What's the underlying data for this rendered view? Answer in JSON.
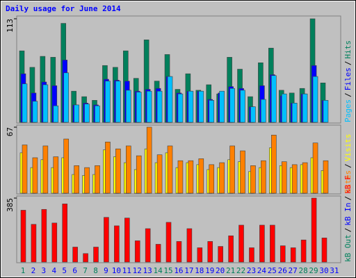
{
  "chart_data": [
    {
      "type": "bar",
      "title": "Daily usage for June 2014",
      "ylim": [
        0,
        113
      ],
      "yticks": [
        113
      ],
      "legend_separator": "/",
      "series": [
        {
          "name": "Hits",
          "color": "#00805c",
          "values": [
            78,
            60,
            72,
            71,
            108,
            34,
            28,
            24,
            62,
            60,
            78,
            48,
            90,
            45,
            74,
            36,
            53,
            35,
            41,
            31,
            71,
            58,
            28,
            65,
            81,
            35,
            32,
            37,
            113,
            43,
            0
          ]
        },
        {
          "name": "Files",
          "color": "#0000ff",
          "values": [
            53,
            32,
            44,
            40,
            68,
            19,
            21,
            19,
            47,
            46,
            45,
            34,
            36,
            37,
            50,
            32,
            34,
            34,
            25,
            32,
            39,
            37,
            17,
            40,
            52,
            29,
            21,
            31,
            62,
            24,
            0
          ]
        },
        {
          "name": "Pages",
          "color": "#00c0ff",
          "values": [
            42,
            23,
            41,
            18,
            54,
            19,
            20,
            18,
            45,
            45,
            35,
            33,
            34,
            34,
            50,
            31,
            34,
            34,
            24,
            34,
            37,
            35,
            17,
            25,
            51,
            31,
            21,
            31,
            50,
            24,
            0
          ]
        }
      ]
    },
    {
      "type": "bar",
      "ylim": [
        0,
        67
      ],
      "yticks": [
        67
      ],
      "legend_separator": "/",
      "series": [
        {
          "name": "Visits",
          "color": "#ffff00",
          "values": [
            41,
            26,
            34,
            26,
            36,
            19,
            18,
            19,
            44,
            37,
            31,
            24,
            45,
            31,
            41,
            26,
            31,
            29,
            24,
            26,
            34,
            32,
            22,
            26,
            46,
            28,
            26,
            29,
            36,
            23,
            0
          ]
        },
        {
          "name": "Sites",
          "color": "#ff8000",
          "values": [
            49,
            36,
            48,
            37,
            55,
            28,
            26,
            28,
            52,
            45,
            48,
            38,
            67,
            39,
            48,
            33,
            33,
            35,
            29,
            31,
            48,
            43,
            28,
            33,
            59,
            32,
            29,
            31,
            51,
            33,
            0
          ]
        }
      ]
    },
    {
      "type": "bar",
      "ylim": [
        0,
        385
      ],
      "yticks": [
        385
      ],
      "legend_separator": "/",
      "legend_names": [
        {
          "name": "kB F",
          "color": "#ff0000"
        },
        {
          "name": "kB In",
          "color": "#0000ff"
        },
        {
          "name": "kB Out",
          "color": "#00805c"
        }
      ],
      "categories": [
        "1",
        "2",
        "3",
        "4",
        "5",
        "6",
        "7",
        "8",
        "9",
        "10",
        "11",
        "12",
        "13",
        "14",
        "15",
        "16",
        "17",
        "18",
        "19",
        "20",
        "21",
        "22",
        "23",
        "24",
        "25",
        "26",
        "27",
        "28",
        "29",
        "30",
        "31"
      ],
      "category_colors": [
        "#00805c",
        "#0000ff",
        "#0000ff",
        "#0000ff",
        "#0000ff",
        "#0000ff",
        "#00805c",
        "#00805c",
        "#0000ff",
        "#0000ff",
        "#0000ff",
        "#0000ff",
        "#0000ff",
        "#00805c",
        "#00805c",
        "#0000ff",
        "#0000ff",
        "#0000ff",
        "#0000ff",
        "#0000ff",
        "#00805c",
        "#00805c",
        "#0000ff",
        "#0000ff",
        "#0000ff",
        "#0000ff",
        "#0000ff",
        "#00805c",
        "#00805c",
        "#0000ff",
        "#0000ff"
      ],
      "series": [
        {
          "name": "kB F",
          "color": "#ff0000",
          "values": [
            312,
            227,
            317,
            235,
            350,
            90,
            51,
            90,
            269,
            218,
            265,
            128,
            201,
            107,
            239,
            124,
            201,
            86,
            124,
            94,
            158,
            222,
            86,
            222,
            222,
            98,
            86,
            133,
            385,
            145,
            0
          ]
        }
      ]
    }
  ]
}
